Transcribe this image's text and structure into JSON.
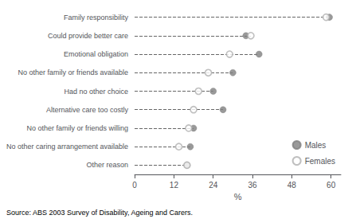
{
  "chart_data": {
    "type": "scatter",
    "orientation": "horizontal",
    "categories": [
      "Family responsibility",
      "Could provide better care",
      "Emotional obligation",
      "No other family or friends available",
      "Had no other choice",
      "Alternative care too costly",
      "No other family or friends willing",
      "No other caring arrangement available",
      "Other reason"
    ],
    "series": [
      {
        "name": "Males",
        "color": "#808080",
        "marker": "circle",
        "values": [
          59.5,
          34.0,
          38.0,
          30.0,
          24.0,
          27.0,
          18.0,
          17.0,
          16.0
        ]
      },
      {
        "name": "Females",
        "color": "#b0b0b0",
        "marker": "open circle",
        "values": [
          58.5,
          35.5,
          29.0,
          22.5,
          19.5,
          18.0,
          16.5,
          13.5,
          16.0
        ]
      }
    ],
    "xlabel": "%",
    "xlim": [
      0,
      63
    ],
    "xticks": [
      0,
      12,
      24,
      36,
      48,
      60
    ],
    "line_style": "dashed",
    "legend": "lower right",
    "grid": false,
    "annotations": [
      "Source: ABS 2003 Survey of Disability, Ageing and Carers."
    ]
  }
}
